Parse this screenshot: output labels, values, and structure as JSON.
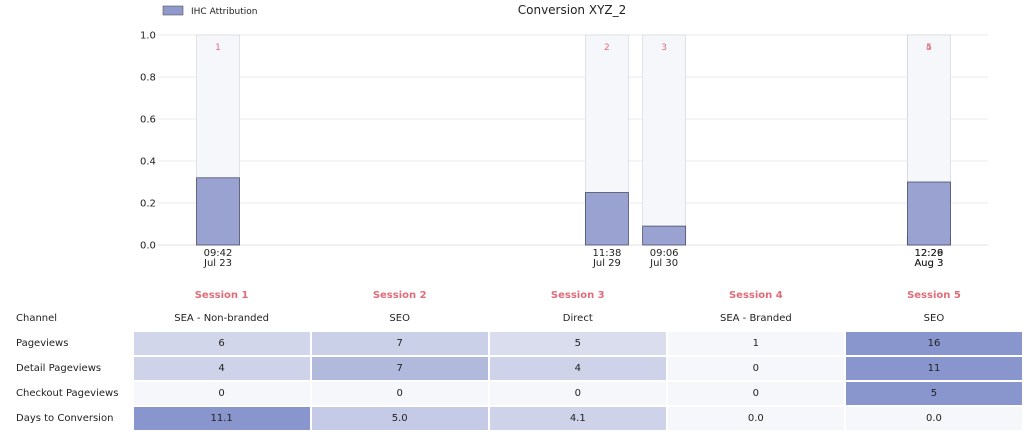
{
  "chart_data": {
    "type": "bar",
    "title": "Conversion XYZ_2",
    "legend": {
      "label": "IHC Attribution",
      "color": "#8f99cc",
      "position": "top-left"
    },
    "ylim": [
      0,
      1.0
    ],
    "yticks": [
      "0.0",
      "0.2",
      "0.4",
      "0.6",
      "0.8",
      "1.0"
    ],
    "grid": true,
    "x_axis": "time",
    "bar_color": "#9aa2d2",
    "session_label_color": "#e06c7a",
    "categories": [
      "09:42\nJul 23",
      "11:38\nJul 29",
      "09:06\nJul 30",
      "12:26\nAug 3",
      "12:29\nAug 3"
    ],
    "x": [
      "2023-07-23T09:42",
      "2023-07-29T11:38",
      "2023-07-30T09:06",
      "2023-08-03T12:26",
      "2023-08-03T12:29"
    ],
    "session_numbers": [
      "1",
      "2",
      "3",
      "4",
      "5"
    ],
    "series": [
      {
        "name": "IHC Attribution",
        "values": [
          0.32,
          0.25,
          0.09,
          0.04,
          0.3
        ]
      }
    ]
  },
  "table": {
    "headers": [
      "Session 1",
      "Session 2",
      "Session 3",
      "Session 4",
      "Session 5"
    ],
    "rows": [
      {
        "label": "Channel",
        "values": [
          "SEA - Non-branded",
          "SEO",
          "Direct",
          "SEA - Branded",
          "SEO"
        ],
        "shaded": false
      },
      {
        "label": "Pageviews",
        "values": [
          "6",
          "7",
          "5",
          "1",
          "16"
        ],
        "shaded": true
      },
      {
        "label": "Detail Pageviews",
        "values": [
          "4",
          "7",
          "4",
          "0",
          "11"
        ],
        "shaded": true
      },
      {
        "label": "Checkout Pageviews",
        "values": [
          "0",
          "0",
          "0",
          "0",
          "5"
        ],
        "shaded": true
      },
      {
        "label": "Days to Conversion",
        "values": [
          "11.1",
          "5.0",
          "4.1",
          "0.0",
          "0.0"
        ],
        "shaded": true
      }
    ]
  }
}
